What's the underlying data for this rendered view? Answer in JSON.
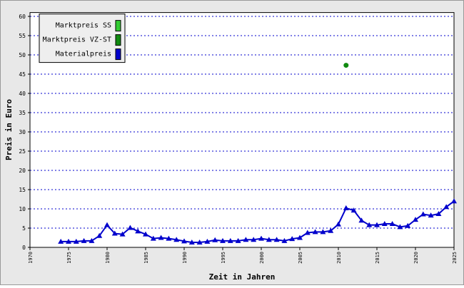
{
  "chart_data": {
    "type": "line",
    "x_label": "Zeit in Jahren",
    "y_label": "Preis in Euro",
    "x": [
      1974,
      1975,
      1976,
      1977,
      1978,
      1979,
      1980,
      1981,
      1982,
      1983,
      1984,
      1985,
      1986,
      1987,
      1988,
      1989,
      1990,
      1991,
      1992,
      1993,
      1994,
      1995,
      1996,
      1997,
      1998,
      1999,
      2000,
      2001,
      2002,
      2003,
      2004,
      2005,
      2006,
      2007,
      2008,
      2009,
      2010,
      2011,
      2012,
      2013,
      2014,
      2015,
      2016,
      2017,
      2018,
      2019,
      2020,
      2021,
      2022,
      2023,
      2024,
      2025
    ],
    "series": [
      {
        "name": "Marktpreis SS",
        "color": "#33cc33",
        "marker": "circle",
        "values": [
          null,
          null,
          null,
          null,
          null,
          null,
          null,
          null,
          null,
          null,
          null,
          null,
          null,
          null,
          null,
          null,
          null,
          null,
          null,
          null,
          null,
          null,
          null,
          null,
          null,
          null,
          null,
          null,
          null,
          null,
          null,
          null,
          null,
          null,
          null,
          null,
          null,
          null,
          null,
          null,
          null,
          null,
          null,
          null,
          null,
          null,
          null,
          null,
          null,
          null,
          null,
          null
        ]
      },
      {
        "name": "Marktpreis VZ-ST",
        "color": "#108a10",
        "marker": "circle",
        "values": [
          null,
          null,
          null,
          null,
          null,
          null,
          null,
          null,
          null,
          null,
          null,
          null,
          null,
          null,
          null,
          null,
          null,
          null,
          null,
          null,
          null,
          null,
          null,
          null,
          null,
          null,
          null,
          null,
          null,
          null,
          null,
          null,
          null,
          null,
          null,
          null,
          null,
          47.3,
          null,
          null,
          null,
          null,
          null,
          null,
          null,
          null,
          null,
          null,
          null,
          null,
          null,
          null
        ]
      },
      {
        "name": "Materialpreis",
        "color": "#0000cc",
        "marker": "triangle",
        "values": [
          1.5,
          1.5,
          1.5,
          1.7,
          1.7,
          3.0,
          5.8,
          3.6,
          3.4,
          5.1,
          4.2,
          3.4,
          2.3,
          2.5,
          2.3,
          2.0,
          1.6,
          1.3,
          1.3,
          1.5,
          1.9,
          1.7,
          1.7,
          1.7,
          2.0,
          2.0,
          2.3,
          2.0,
          2.0,
          1.7,
          2.2,
          2.5,
          3.8,
          4.0,
          4.0,
          4.3,
          6.0,
          10.2,
          9.6,
          7.0,
          5.8,
          5.8,
          6.1,
          6.1,
          5.3,
          5.6,
          7.2,
          8.6,
          8.3,
          8.7,
          10.5,
          12.0
        ]
      }
    ],
    "xlim": [
      1970,
      2025
    ],
    "ylim": [
      0,
      61
    ],
    "xticks": [
      1970,
      1975,
      1980,
      1985,
      1990,
      1995,
      2000,
      2005,
      2010,
      2015,
      2020,
      2025
    ],
    "yticks": [
      0,
      5,
      10,
      15,
      20,
      25,
      30,
      35,
      40,
      45,
      50,
      55,
      60
    ],
    "grid": true,
    "legend": "upper left"
  }
}
